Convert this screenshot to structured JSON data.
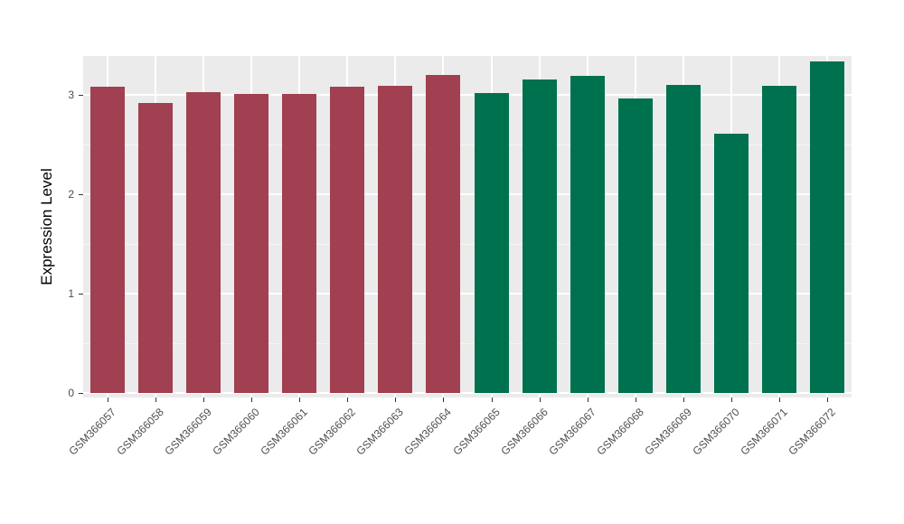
{
  "chart_data": {
    "type": "bar",
    "title": "",
    "xlabel": "",
    "ylabel": "Expression Level",
    "ylim": [
      0,
      3.4
    ],
    "yticks": [
      0,
      1,
      2,
      3
    ],
    "minor_yticks": [
      0.5,
      1.5,
      2.5
    ],
    "categories": [
      "GSM366057",
      "GSM366058",
      "GSM366059",
      "GSM366060",
      "GSM366061",
      "GSM366062",
      "GSM366063",
      "GSM366064",
      "GSM366065",
      "GSM366066",
      "GSM366067",
      "GSM366068",
      "GSM366069",
      "GSM366070",
      "GSM366071",
      "GSM366072"
    ],
    "values": [
      3.08,
      2.92,
      3.03,
      3.01,
      3.01,
      3.08,
      3.09,
      3.2,
      3.02,
      3.15,
      3.19,
      2.96,
      3.1,
      2.61,
      3.09,
      3.34
    ],
    "bar_colors": [
      "#A04050",
      "#A04050",
      "#A04050",
      "#A04050",
      "#A04050",
      "#A04050",
      "#A04050",
      "#A04050",
      "#00714E",
      "#00714E",
      "#00714E",
      "#00714E",
      "#00714E",
      "#00714E",
      "#00714E",
      "#00714E"
    ],
    "group_colors": {
      "left_group": "#A04050",
      "right_group": "#00714E"
    },
    "panel_background": "#EBEBEB",
    "gridline_color": "#FFFFFF",
    "tick_label_color": "#4D4D4D",
    "legend": "none",
    "grid": "on"
  }
}
